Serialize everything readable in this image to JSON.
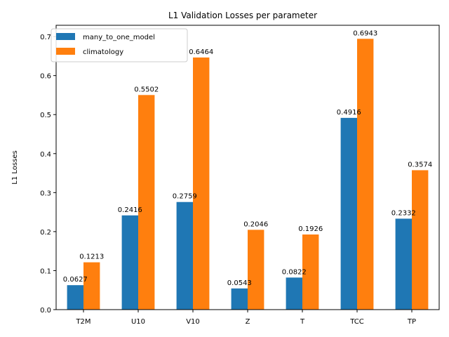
{
  "chart_data": {
    "type": "bar",
    "title": "L1 Validation Losses per parameter",
    "xlabel": "",
    "ylabel": "L1 Losses",
    "categories": [
      "T2M",
      "U10",
      "V10",
      "Z",
      "T",
      "TCC",
      "TP"
    ],
    "series": [
      {
        "name": "many_to_one_model",
        "color": "#1f77b4",
        "values": [
          0.0627,
          0.2416,
          0.2759,
          0.0543,
          0.0822,
          0.4916,
          0.2332
        ],
        "labels": [
          "0.0627",
          "0.2416",
          "0.2759",
          "0.0543",
          "0.0822",
          "0.4916",
          "0.2332"
        ]
      },
      {
        "name": "climatology",
        "color": "#ff7f0e",
        "values": [
          0.1213,
          0.5502,
          0.6464,
          0.2046,
          0.1926,
          0.6943,
          0.3574
        ],
        "labels": [
          "0.1213",
          "0.5502",
          "0.6464",
          "0.2046",
          "0.1926",
          "0.6943",
          "0.3574"
        ]
      }
    ],
    "ylim": [
      0,
      0.729
    ],
    "yticks": [
      0.0,
      0.1,
      0.2,
      0.3,
      0.4,
      0.5,
      0.6,
      0.7
    ],
    "ytick_labels": [
      "0.0",
      "0.1",
      "0.2",
      "0.3",
      "0.4",
      "0.5",
      "0.6",
      "0.7"
    ],
    "grid": false,
    "legend_position": "top-left"
  }
}
